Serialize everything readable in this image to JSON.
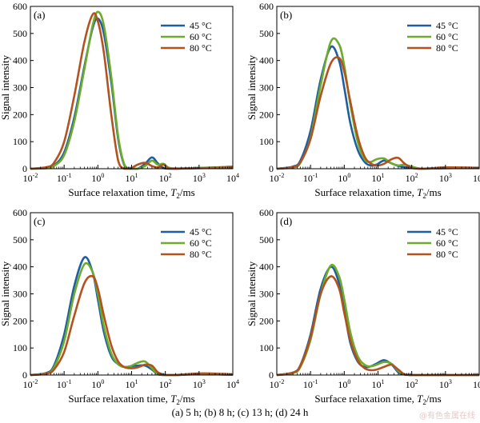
{
  "colors": {
    "45": "#1f5fa0",
    "60": "#6cab2c",
    "80": "#b3521e",
    "axis": "#000000"
  },
  "caption": "(a) 5 h; (b) 8 h; (c) 13 h; (d) 24 h",
  "watermark": "@有色金属在线",
  "chart_data": [
    {
      "type": "line",
      "panel_label": "(a)",
      "xlabel": "Surface relaxation time, T2/ms",
      "ylabel": "Signal intensity",
      "xscale": "log",
      "xlim": [
        0.01,
        10000
      ],
      "ylim": [
        0,
        600
      ],
      "yticks": [
        0,
        100,
        200,
        300,
        400,
        500,
        600
      ],
      "legend": "top-right",
      "series": [
        {
          "name": "45 °C",
          "x": [
            0.01,
            0.03,
            0.05,
            0.1,
            0.2,
            0.4,
            0.7,
            1.0,
            1.5,
            2.5,
            4.0,
            6.0,
            9.0,
            15,
            25,
            40,
            60,
            90,
            150,
            1000,
            5000,
            10000
          ],
          "y": [
            0,
            3,
            12,
            60,
            190,
            380,
            520,
            555,
            500,
            320,
            110,
            15,
            0,
            0,
            18,
            42,
            20,
            2,
            0,
            3,
            6,
            8
          ]
        },
        {
          "name": "60 °C",
          "x": [
            0.01,
            0.03,
            0.05,
            0.1,
            0.2,
            0.4,
            0.7,
            1.0,
            1.5,
            2.5,
            4.0,
            6.0,
            9.0,
            15,
            25,
            40,
            60,
            90,
            150,
            1000,
            5000,
            10000
          ],
          "y": [
            0,
            2,
            10,
            50,
            175,
            370,
            530,
            580,
            530,
            340,
            120,
            18,
            0,
            0,
            10,
            30,
            15,
            18,
            2,
            3,
            6,
            8
          ]
        },
        {
          "name": "80 °C",
          "x": [
            0.01,
            0.03,
            0.05,
            0.1,
            0.2,
            0.4,
            0.7,
            1.0,
            1.5,
            2.5,
            4.0,
            6.0,
            9.0,
            15,
            25,
            40,
            60,
            90,
            150,
            1000,
            5000,
            10000
          ],
          "y": [
            0,
            6,
            22,
            100,
            270,
            470,
            570,
            545,
            430,
            200,
            30,
            0,
            0,
            15,
            22,
            10,
            5,
            15,
            0,
            2,
            4,
            5
          ]
        }
      ]
    },
    {
      "type": "line",
      "panel_label": "(b)",
      "xlabel": "Surface relaxation time, T2/ms",
      "ylabel": "Signal intensity",
      "xscale": "log",
      "xlim": [
        0.01,
        10000
      ],
      "ylim": [
        0,
        600
      ],
      "yticks": [
        0,
        100,
        200,
        300,
        400,
        500,
        600
      ],
      "legend": "top-right",
      "series": [
        {
          "name": "45 °C",
          "x": [
            0.01,
            0.03,
            0.05,
            0.1,
            0.2,
            0.4,
            0.7,
            1.0,
            1.5,
            2.5,
            4.0,
            6.0,
            9.0,
            15,
            25,
            40,
            60,
            100,
            200,
            1000,
            5000,
            10000
          ],
          "y": [
            0,
            8,
            30,
            140,
            330,
            450,
            400,
            300,
            170,
            70,
            25,
            12,
            15,
            30,
            20,
            10,
            6,
            3,
            0,
            2,
            3,
            3
          ]
        },
        {
          "name": "60 °C",
          "x": [
            0.01,
            0.03,
            0.05,
            0.1,
            0.2,
            0.4,
            0.7,
            1.0,
            1.5,
            2.5,
            4.0,
            6.0,
            9.0,
            15,
            25,
            40,
            60,
            100,
            200,
            1000,
            5000,
            10000
          ],
          "y": [
            0,
            5,
            22,
            115,
            310,
            470,
            460,
            380,
            240,
            100,
            35,
            25,
            35,
            38,
            20,
            12,
            15,
            8,
            0,
            2,
            3,
            3
          ]
        },
        {
          "name": "80 °C",
          "x": [
            0.01,
            0.03,
            0.05,
            0.1,
            0.2,
            0.4,
            0.7,
            1.0,
            1.5,
            2.5,
            4.0,
            6.0,
            9.0,
            15,
            25,
            40,
            60,
            100,
            200,
            1000,
            5000,
            10000
          ],
          "y": [
            0,
            6,
            24,
            110,
            270,
            390,
            410,
            360,
            250,
            120,
            45,
            20,
            12,
            18,
            35,
            40,
            20,
            3,
            0,
            5,
            4,
            3
          ]
        }
      ]
    },
    {
      "type": "line",
      "panel_label": "(c)",
      "xlabel": "Surface relaxation time, T2/ms",
      "ylabel": "Signal intensity",
      "xscale": "log",
      "xlim": [
        0.01,
        10000
      ],
      "ylim": [
        0,
        600
      ],
      "yticks": [
        0,
        100,
        200,
        300,
        400,
        500,
        600
      ],
      "legend": "top-right",
      "series": [
        {
          "name": "45 °C",
          "x": [
            0.01,
            0.03,
            0.05,
            0.1,
            0.2,
            0.4,
            0.7,
            1.0,
            1.5,
            2.5,
            4.0,
            6.0,
            9.0,
            15,
            25,
            40,
            60,
            100,
            200,
            1000,
            5000,
            10000
          ],
          "y": [
            0,
            8,
            35,
            150,
            330,
            435,
            380,
            280,
            160,
            70,
            40,
            30,
            32,
            35,
            35,
            20,
            3,
            0,
            0,
            3,
            2,
            1
          ]
        },
        {
          "name": "60 °C",
          "x": [
            0.01,
            0.03,
            0.05,
            0.1,
            0.2,
            0.4,
            0.7,
            1.0,
            1.5,
            2.5,
            4.0,
            6.0,
            9.0,
            15,
            25,
            40,
            60,
            100,
            200,
            1000,
            5000,
            10000
          ],
          "y": [
            0,
            6,
            28,
            125,
            300,
            410,
            380,
            300,
            180,
            80,
            40,
            30,
            32,
            45,
            50,
            25,
            3,
            0,
            0,
            3,
            2,
            1
          ]
        },
        {
          "name": "80 °C",
          "x": [
            0.01,
            0.03,
            0.05,
            0.1,
            0.2,
            0.4,
            0.7,
            1.0,
            1.5,
            2.5,
            4.0,
            6.0,
            9.0,
            15,
            25,
            40,
            60,
            100,
            200,
            1000,
            5000,
            10000
          ],
          "y": [
            0,
            5,
            20,
            85,
            220,
            340,
            365,
            320,
            220,
            110,
            50,
            30,
            25,
            28,
            38,
            35,
            10,
            0,
            0,
            6,
            4,
            2
          ]
        }
      ]
    },
    {
      "type": "line",
      "panel_label": "(d)",
      "xlabel": "Surface relaxation time, T2/ms",
      "ylabel": "Signal intensity",
      "xscale": "log",
      "xlim": [
        0.01,
        10000
      ],
      "ylim": [
        0,
        600
      ],
      "yticks": [
        0,
        100,
        200,
        300,
        400,
        500,
        600
      ],
      "legend": "top-right",
      "series": [
        {
          "name": "45 °C",
          "x": [
            0.01,
            0.03,
            0.05,
            0.1,
            0.2,
            0.4,
            0.7,
            1.0,
            1.5,
            2.5,
            4.0,
            6.0,
            9.0,
            15,
            25,
            40,
            60,
            100,
            200,
            1000,
            5000,
            10000
          ],
          "y": [
            0,
            9,
            36,
            150,
            320,
            400,
            340,
            240,
            120,
            50,
            30,
            32,
            42,
            55,
            40,
            10,
            2,
            0,
            0,
            0,
            0,
            0
          ]
        },
        {
          "name": "60 °C",
          "x": [
            0.01,
            0.03,
            0.05,
            0.1,
            0.2,
            0.4,
            0.7,
            1.0,
            1.5,
            2.5,
            4.0,
            6.0,
            9.0,
            15,
            25,
            40,
            60,
            100,
            200,
            1000,
            5000,
            10000
          ],
          "y": [
            0,
            7,
            30,
            130,
            300,
            405,
            365,
            280,
            160,
            70,
            38,
            32,
            38,
            48,
            42,
            15,
            3,
            0,
            0,
            0,
            0,
            0
          ]
        },
        {
          "name": "80 °C",
          "x": [
            0.01,
            0.03,
            0.05,
            0.1,
            0.2,
            0.4,
            0.7,
            1.0,
            1.5,
            2.5,
            4.0,
            6.0,
            9.0,
            15,
            25,
            40,
            60,
            100,
            200,
            1000,
            5000,
            10000
          ],
          "y": [
            0,
            9,
            34,
            140,
            300,
            365,
            320,
            230,
            130,
            55,
            25,
            18,
            20,
            30,
            38,
            20,
            3,
            0,
            0,
            0,
            0,
            0
          ]
        }
      ]
    }
  ]
}
